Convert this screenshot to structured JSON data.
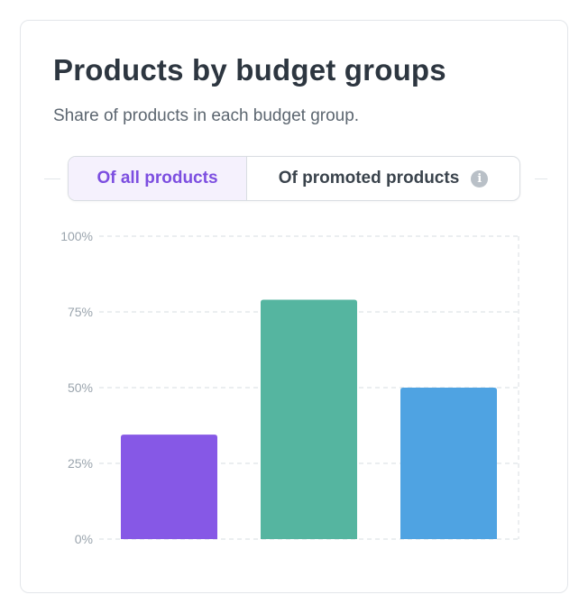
{
  "title": "Products by budget groups",
  "subtitle": "Share of products in each budget group.",
  "toggle": {
    "options": [
      {
        "label": "Of all products",
        "active": true
      },
      {
        "label": "Of promoted products",
        "active": false,
        "icon": "info-icon"
      }
    ],
    "info_glyph": "i"
  },
  "colors": {
    "accent": "#7c4ee0",
    "active_tab_bg": "#f5f1fd"
  },
  "chart_data": {
    "type": "bar",
    "categories": [
      "",
      "",
      ""
    ],
    "values": [
      34.5,
      79,
      50
    ],
    "colors": [
      "#8658e6",
      "#55b5a0",
      "#4fa3e2"
    ],
    "ylim": [
      0,
      100
    ],
    "yticks": [
      0,
      25,
      50,
      75,
      100
    ],
    "ytick_labels": [
      "0%",
      "25%",
      "50%",
      "75%",
      "100%"
    ],
    "grid": true,
    "title": "",
    "xlabel": "",
    "ylabel": ""
  }
}
